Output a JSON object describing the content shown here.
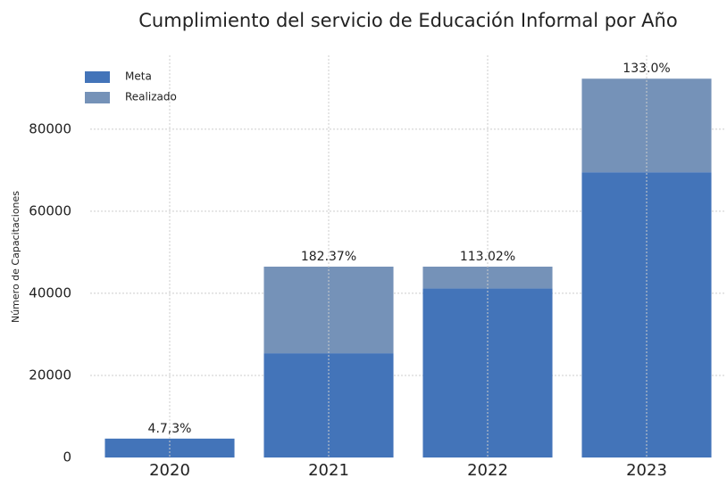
{
  "chart_data": {
    "type": "bar",
    "stacked": true,
    "title": "Cumplimiento del servicio de Educación Informal por  Año",
    "y_label": "Número de Capacitaciones",
    "categories": [
      "2020",
      "2021",
      "2022",
      "2023"
    ],
    "series": [
      {
        "name": "Meta",
        "color": "#4374b9",
        "values": [
          4600,
          25400,
          41200,
          69500
        ]
      },
      {
        "name": "Realizado",
        "color": "#7592b8",
        "values": [
          0,
          21100,
          5300,
          22800
        ]
      }
    ],
    "annotations": [
      "4.7,3%",
      "182.37%",
      "113.02%",
      "133.0%"
    ],
    "ylim": [
      0,
      98000
    ],
    "yticks": [
      0,
      20000,
      40000,
      60000,
      80000
    ],
    "grid": true,
    "legend": "upper left"
  }
}
